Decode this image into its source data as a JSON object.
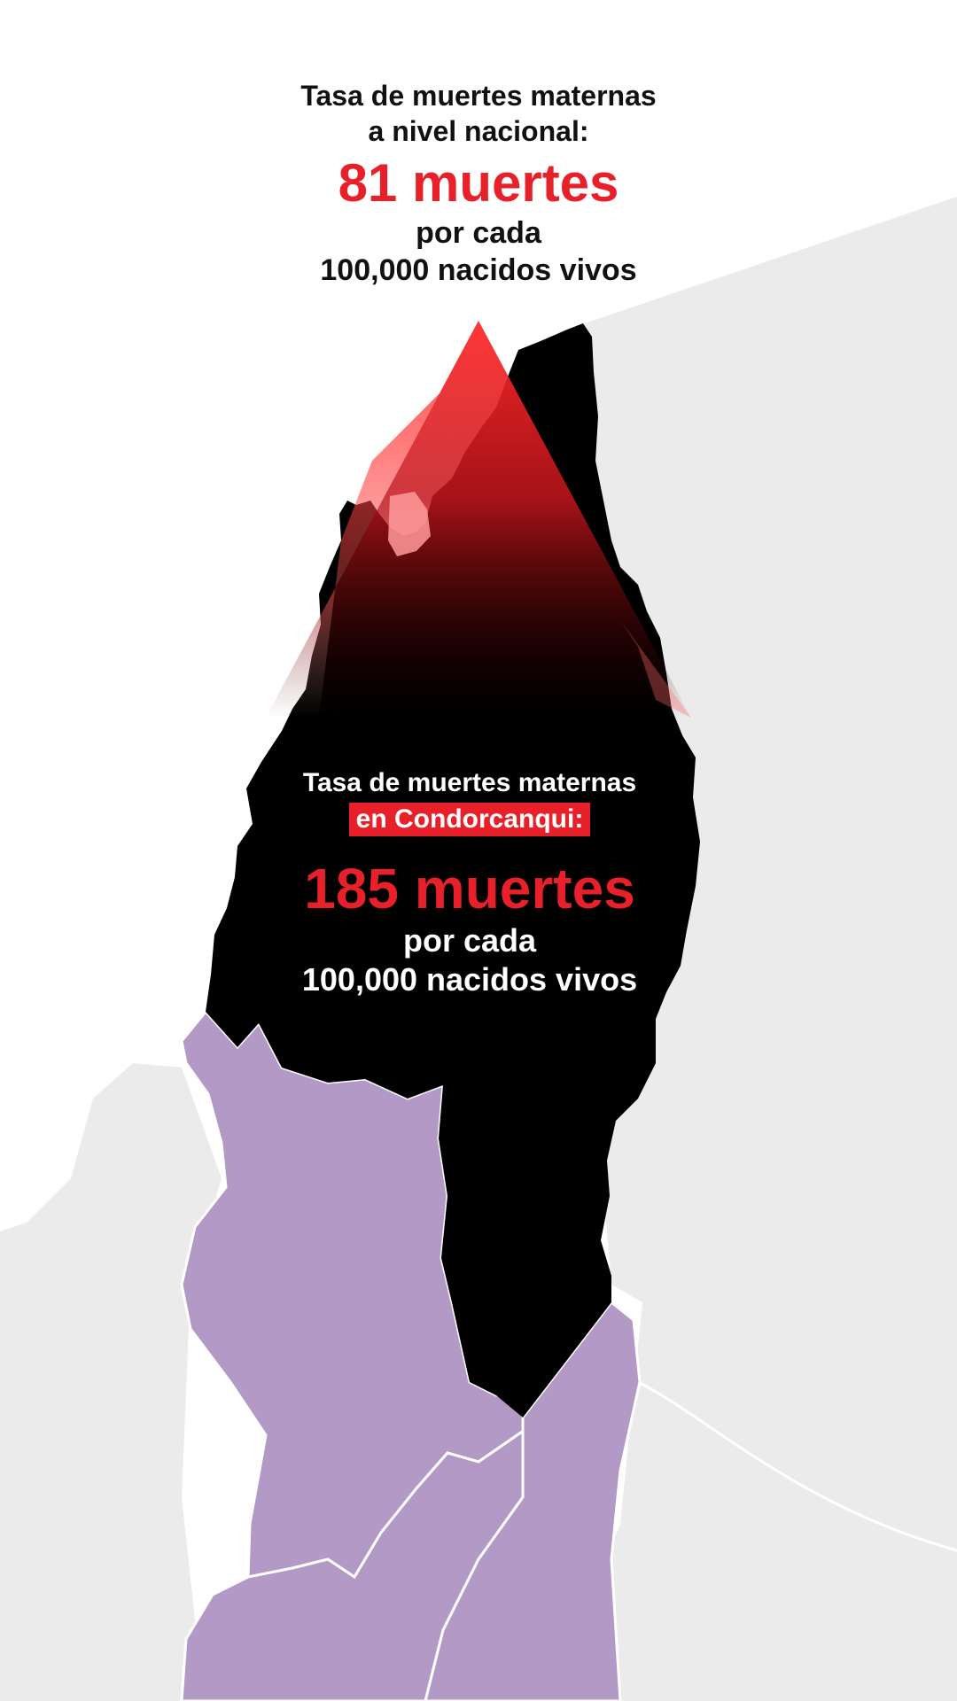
{
  "national": {
    "label_line1": "Tasa de muertes maternas",
    "label_line2": "a nivel nacional:",
    "value": "81 muertes",
    "unit_line1": "por cada",
    "unit_line2": "100,000 nacidos vivos",
    "rate": 81
  },
  "local": {
    "label_line1": "Tasa de muertes maternas",
    "label_line2": "en Condorcanqui:",
    "value": "185 muertes",
    "unit_line1": "por cada",
    "unit_line2": "100,000 nacidos vivos",
    "rate": 185
  },
  "colors": {
    "highlight_region": "#000000",
    "neighbor_regions": "#b399c6",
    "background_land": "#ebebeb",
    "accent_red": "#e8202a",
    "text_dark": "#111111",
    "text_light": "#ffffff"
  }
}
